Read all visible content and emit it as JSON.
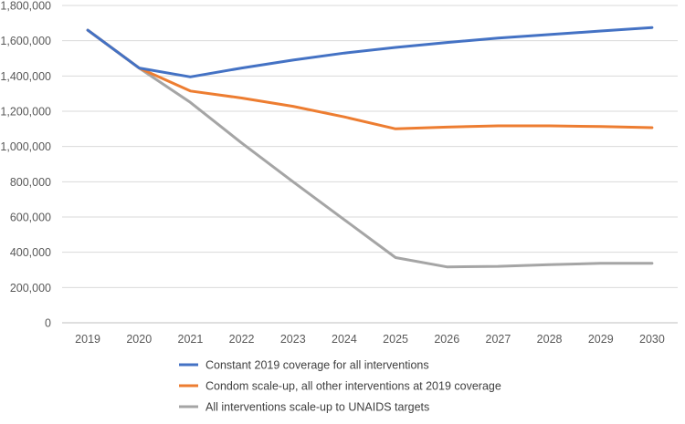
{
  "chart_data": {
    "type": "line",
    "title": "",
    "xlabel": "",
    "ylabel": "",
    "ylim": [
      0,
      1800000
    ],
    "y_ticks": [
      0,
      200000,
      400000,
      600000,
      800000,
      1000000,
      1200000,
      1400000,
      1600000,
      1800000
    ],
    "y_tick_labels": [
      "0",
      "200,000",
      "400,000",
      "600,000",
      "800,000",
      "1,000,000",
      "1,200,000",
      "1,400,000",
      "1,600,000",
      "1,800,000"
    ],
    "grid": true,
    "legend_position": "bottom",
    "categories": [
      "2019",
      "2020",
      "2021",
      "2022",
      "2023",
      "2024",
      "2025",
      "2026",
      "2027",
      "2028",
      "2029",
      "2030"
    ],
    "series": [
      {
        "name": "Constant 2019 coverage for all interventions",
        "color": "#4472C4",
        "values": [
          1660000,
          1445000,
          1395000,
          1445000,
          1490000,
          1530000,
          1562000,
          1590000,
          1615000,
          1635000,
          1655000,
          1675000
        ]
      },
      {
        "name": "Condom scale-up, all other interventions at 2019 coverage",
        "color": "#ED7D31",
        "values": [
          1660000,
          1445000,
          1315000,
          1275000,
          1228000,
          1168000,
          1100000,
          1110000,
          1117000,
          1117000,
          1113000,
          1107000
        ]
      },
      {
        "name": "All interventions scale-up to UNAIDS targets",
        "color": "#A5A5A5",
        "values": [
          1660000,
          1445000,
          1250000,
          1020000,
          800000,
          585000,
          370000,
          317000,
          320000,
          330000,
          337000,
          337000
        ]
      }
    ]
  }
}
